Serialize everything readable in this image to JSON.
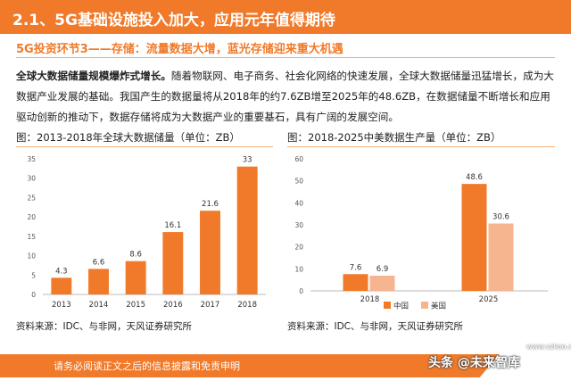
{
  "header": {
    "title": "2.1、5G基础设施投入加大，应用元年值得期待"
  },
  "subtitle": "5G投资环节3——存储：流量数据大增，蓝光存储迎来重大机遇",
  "paragraph": {
    "lead": "全球大数据储量规模爆炸式增长。",
    "body": "随着物联网、电子商务、社会化网络的快速发展，全球大数据储量迅猛增长，成为大数据产业发展的基础。我国产生的数据量将从2018年的约7.6ZB增至2025年的48.6ZB，在数据储量不断增长和应用驱动创新的推动下，数据存储将成为大数据产业的重要基石，具有广阔的发展空间。"
  },
  "left_chart_title": "图：2013-2018年全球大数据储量（单位：ZB）",
  "right_chart_title": "图：2018-2025中美数据生产量（单位：ZB）",
  "left_source": "资料来源：IDC、与非网，天风证券研究所",
  "right_source": "资料来源：IDC、与非网，天风证券研究所",
  "footer": {
    "disclaimer": "请务必阅读正文之后的信息披露和免责申明"
  },
  "watermark": {
    "text": "头条 @未来智库",
    "site": "www.vzkoo.com"
  },
  "colors": {
    "accent": "#f07a2a",
    "bar_primary": "#f07a2a",
    "bar_secondary": "#f6b48f"
  },
  "chart_data": [
    {
      "type": "bar",
      "categories": [
        "2013",
        "2014",
        "2015",
        "2016",
        "2017",
        "2018"
      ],
      "values": [
        4.3,
        6.6,
        8.6,
        16.1,
        21.6,
        33
      ],
      "ylim": [
        0,
        35
      ],
      "yticks": [
        0,
        5,
        10,
        15,
        20,
        25,
        30,
        35
      ],
      "grid": false,
      "data_labels": true
    },
    {
      "type": "bar",
      "categories": [
        "2018",
        "2025"
      ],
      "series": [
        {
          "name": "中国",
          "values": [
            7.6,
            48.6
          ]
        },
        {
          "name": "美国",
          "values": [
            6.9,
            30.6
          ]
        }
      ],
      "ylim": [
        0,
        60
      ],
      "yticks": [
        0,
        10,
        20,
        30,
        40,
        50,
        60
      ],
      "grid": false,
      "legend": "bottom",
      "data_labels": true
    }
  ]
}
